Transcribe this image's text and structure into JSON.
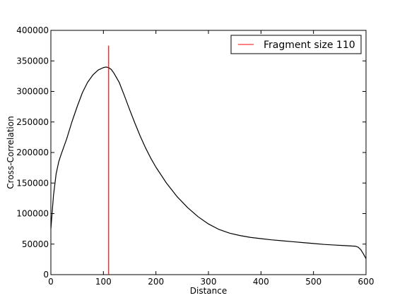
{
  "chart_data": {
    "type": "line",
    "title": "",
    "xlabel": "Distance",
    "ylabel": "Cross-Correlation",
    "xlim": [
      0,
      600
    ],
    "ylim": [
      0,
      400000
    ],
    "x_ticks": [
      0,
      100,
      200,
      300,
      400,
      500,
      600
    ],
    "y_ticks": [
      0,
      50000,
      100000,
      150000,
      200000,
      250000,
      300000,
      350000,
      400000
    ],
    "grid": false,
    "legend_position": "top-right",
    "colors": {
      "curve": "#000000",
      "marker": "#ff0000"
    },
    "series": [
      {
        "name": "",
        "color": "#000000",
        "x": [
          0,
          5,
          10,
          15,
          20,
          30,
          40,
          50,
          60,
          70,
          80,
          90,
          100,
          105,
          110,
          115,
          120,
          130,
          140,
          150,
          160,
          170,
          180,
          190,
          200,
          220,
          240,
          260,
          280,
          300,
          320,
          340,
          360,
          380,
          400,
          420,
          440,
          460,
          480,
          500,
          520,
          540,
          560,
          580,
          585,
          590,
          595,
          600
        ],
        "y": [
          75000,
          130000,
          165000,
          185000,
          198000,
          222000,
          250000,
          275000,
          298000,
          315000,
          327000,
          335000,
          339000,
          340000,
          339000,
          336000,
          330000,
          315000,
          293000,
          270000,
          248000,
          227000,
          208000,
          191000,
          176000,
          150000,
          128000,
          110000,
          95000,
          83000,
          74000,
          68000,
          64000,
          61000,
          59000,
          57000,
          55500,
          54000,
          52500,
          51000,
          49500,
          48500,
          47500,
          46500,
          45000,
          41000,
          34000,
          26000
        ]
      }
    ],
    "vertical_markers": [
      {
        "name": "Fragment size 110",
        "x": 110,
        "y_top": 375000,
        "color": "#ff0000"
      }
    ]
  }
}
